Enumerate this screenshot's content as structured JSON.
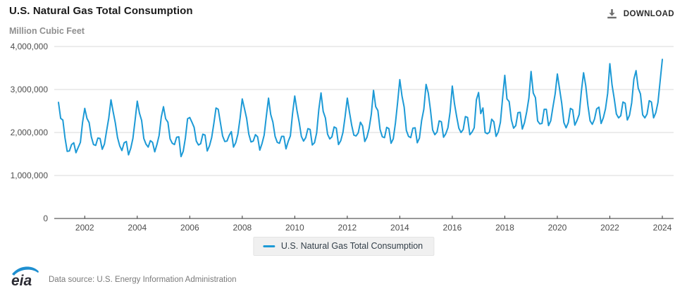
{
  "header": {
    "title": "U.S. Natural Gas Total Consumption",
    "unit_label": "Million Cubic Feet"
  },
  "toolbar": {
    "download_label": "DOWNLOAD"
  },
  "legend": {
    "label": "U.S. Natural Gas Total Consumption"
  },
  "footer": {
    "logo_text": "eia",
    "source": "Data source: U.S. Energy Information Administration"
  },
  "colors": {
    "line": "#1d9ad6",
    "grid": "#d9d9d9",
    "axis": "#333333",
    "tick_label": "#4d4d4d",
    "legend_bg": "#f0f0f0",
    "logo_swoosh": "#1e8fd0",
    "logo_text": "#2b2b33",
    "download_icon": "#6e6e6e"
  },
  "chart_data": {
    "type": "line",
    "title": "U.S. Natural Gas Total Consumption",
    "ylabel": "Million Cubic Feet",
    "xlabel": "",
    "ylim": [
      0,
      4000000
    ],
    "y_ticks": [
      0,
      1000000,
      2000000,
      3000000,
      4000000
    ],
    "x_ticks": [
      2002,
      2004,
      2006,
      2008,
      2010,
      2012,
      2014,
      2016,
      2018,
      2020,
      2022,
      2024
    ],
    "x_range": [
      2001.0,
      2024.0
    ],
    "grid": true,
    "legend_position": "bottom",
    "series": [
      {
        "name": "U.S. Natural Gas Total Consumption",
        "color": "#1d9ad6",
        "frequency": "monthly",
        "start": "2001-01",
        "end": "2024-01",
        "values": [
          2700000,
          2330000,
          2290000,
          1870000,
          1560000,
          1570000,
          1720000,
          1760000,
          1530000,
          1650000,
          1770000,
          2240000,
          2560000,
          2330000,
          2230000,
          1900000,
          1720000,
          1700000,
          1870000,
          1860000,
          1610000,
          1730000,
          2040000,
          2340000,
          2760000,
          2480000,
          2220000,
          1880000,
          1690000,
          1580000,
          1760000,
          1790000,
          1480000,
          1630000,
          1860000,
          2280000,
          2730000,
          2450000,
          2280000,
          1860000,
          1730000,
          1660000,
          1810000,
          1770000,
          1550000,
          1720000,
          1930000,
          2360000,
          2600000,
          2320000,
          2240000,
          1850000,
          1750000,
          1720000,
          1890000,
          1900000,
          1440000,
          1560000,
          1870000,
          2320000,
          2350000,
          2240000,
          2120000,
          1800000,
          1710000,
          1740000,
          1960000,
          1940000,
          1570000,
          1690000,
          1880000,
          2210000,
          2570000,
          2540000,
          2230000,
          1920000,
          1790000,
          1800000,
          1930000,
          2020000,
          1660000,
          1760000,
          1960000,
          2330000,
          2780000,
          2560000,
          2330000,
          1960000,
          1780000,
          1800000,
          1950000,
          1900000,
          1590000,
          1740000,
          1940000,
          2380000,
          2800000,
          2420000,
          2240000,
          1910000,
          1770000,
          1750000,
          1910000,
          1910000,
          1620000,
          1790000,
          1920000,
          2440000,
          2850000,
          2510000,
          2240000,
          1910000,
          1800000,
          1880000,
          2090000,
          2070000,
          1710000,
          1760000,
          1990000,
          2540000,
          2920000,
          2490000,
          2340000,
          1960000,
          1850000,
          1900000,
          2130000,
          2100000,
          1720000,
          1810000,
          2000000,
          2370000,
          2800000,
          2470000,
          2170000,
          1940000,
          1920000,
          1990000,
          2240000,
          2150000,
          1790000,
          1890000,
          2100000,
          2430000,
          2980000,
          2600000,
          2510000,
          2070000,
          1900000,
          1880000,
          2120000,
          2090000,
          1750000,
          1850000,
          2220000,
          2700000,
          3230000,
          2850000,
          2590000,
          2050000,
          1910000,
          1880000,
          2100000,
          2110000,
          1760000,
          1870000,
          2280000,
          2540000,
          3120000,
          2920000,
          2530000,
          2060000,
          1950000,
          2010000,
          2270000,
          2250000,
          1890000,
          1970000,
          2110000,
          2480000,
          3080000,
          2670000,
          2370000,
          2100000,
          2000000,
          2070000,
          2370000,
          2350000,
          1950000,
          2010000,
          2110000,
          2760000,
          2930000,
          2440000,
          2570000,
          2000000,
          1970000,
          2010000,
          2310000,
          2250000,
          1910000,
          2010000,
          2240000,
          2800000,
          3330000,
          2780000,
          2720000,
          2290000,
          2100000,
          2160000,
          2460000,
          2470000,
          2080000,
          2230000,
          2480000,
          2800000,
          3420000,
          2920000,
          2810000,
          2270000,
          2200000,
          2210000,
          2540000,
          2540000,
          2160000,
          2270000,
          2590000,
          2900000,
          3360000,
          3020000,
          2680000,
          2230000,
          2110000,
          2230000,
          2560000,
          2530000,
          2170000,
          2280000,
          2420000,
          2960000,
          3390000,
          3090000,
          2630000,
          2270000,
          2190000,
          2310000,
          2550000,
          2590000,
          2210000,
          2340000,
          2550000,
          2910000,
          3600000,
          3110000,
          2790000,
          2430000,
          2340000,
          2390000,
          2710000,
          2680000,
          2290000,
          2400000,
          2690000,
          3240000,
          3440000,
          3030000,
          2900000,
          2410000,
          2340000,
          2430000,
          2740000,
          2710000,
          2340000,
          2460000,
          2700000,
          3200000,
          3700000
        ]
      }
    ]
  }
}
